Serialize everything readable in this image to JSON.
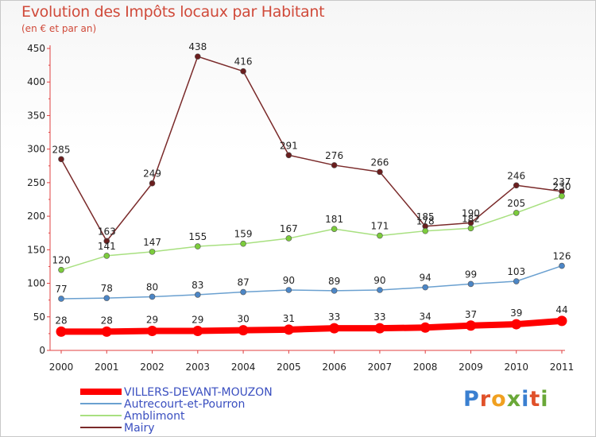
{
  "title": "Evolution des Impôts locaux par Habitant",
  "subtitle": "(en € et par an)",
  "logo": {
    "text": "Proxiti",
    "colors": [
      "#3a7fd0",
      "#e0512a",
      "#f0a020",
      "#6aa838",
      "#3a7fd0",
      "#e0512a",
      "#6aa838"
    ]
  },
  "chart_data": {
    "type": "line",
    "x": [
      "2000",
      "2001",
      "2002",
      "2003",
      "2004",
      "2005",
      "2006",
      "2007",
      "2008",
      "2009",
      "2010",
      "2011"
    ],
    "ylim": [
      0,
      450
    ],
    "yticks": [
      "0",
      "50",
      "100",
      "150",
      "200",
      "250",
      "300",
      "350",
      "400",
      "450"
    ],
    "grid": false,
    "legend": "bottom-left",
    "series": [
      {
        "name": "VILLERS-DEVANT-MOUZON",
        "color": "#ff0000",
        "marker": "#ff0000",
        "values": [
          28,
          28,
          29,
          29,
          30,
          31,
          33,
          33,
          34,
          37,
          39,
          44
        ],
        "labels": [
          "28",
          "28",
          "29",
          "29",
          "30",
          "31",
          "33",
          "33",
          "34",
          "37",
          "39",
          "44"
        ]
      },
      {
        "name": "Autrecourt-et-Pourron",
        "color": "#6aa0d0",
        "marker": "#4c86c6",
        "values": [
          77,
          78,
          80,
          83,
          87,
          90,
          89,
          90,
          94,
          99,
          103,
          126
        ],
        "labels": [
          "77",
          "78",
          "80",
          "83",
          "87",
          "90",
          "89",
          "90",
          "94",
          "99",
          "103",
          "126"
        ]
      },
      {
        "name": "Amblimont",
        "color": "#a8e080",
        "marker": "#7ccc3c",
        "values": [
          120,
          141,
          147,
          155,
          159,
          167,
          181,
          171,
          178,
          182,
          205,
          230
        ],
        "labels": [
          "120",
          "141",
          "147",
          "155",
          "159",
          "167",
          "181",
          "171",
          "178",
          "182",
          "205",
          "230"
        ]
      },
      {
        "name": "Mairy",
        "color": "#7a2a2a",
        "marker": "#6a1e1e",
        "values": [
          285,
          163,
          249,
          438,
          416,
          291,
          276,
          266,
          185,
          190,
          246,
          237
        ],
        "labels": [
          "285",
          "163",
          "249",
          "438",
          "416",
          "291",
          "276",
          "266",
          "185",
          "190",
          "246",
          "237"
        ]
      }
    ]
  }
}
